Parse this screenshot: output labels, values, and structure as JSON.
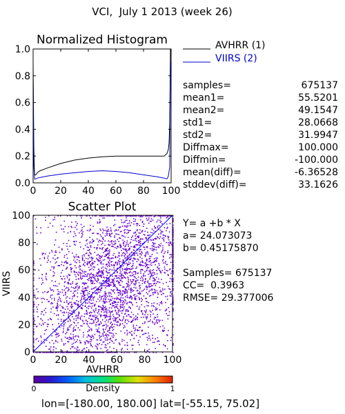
{
  "title": "VCI,  July 1 2013 (week 26)",
  "chart_data": [
    {
      "type": "line",
      "title": "Normalized Histogram",
      "xlim": [
        0,
        100
      ],
      "ylim": [
        0,
        1.0
      ],
      "xticks": [
        "0",
        "20",
        "40",
        "60",
        "80",
        "100"
      ],
      "yticks": [
        "0.0",
        "0.2",
        "0.4",
        "0.6",
        "0.8",
        "1.0"
      ],
      "series": [
        {
          "name": "AVHRR (1)",
          "color": "#000000",
          "x": [
            0,
            0.5,
            1,
            1.5,
            2,
            3,
            5,
            10,
            20,
            30,
            40,
            50,
            60,
            70,
            80,
            90,
            95,
            97,
            98,
            98.5,
            99,
            99.5,
            100
          ],
          "y": [
            0.9,
            0.28,
            0.06,
            0.06,
            0.06,
            0.075,
            0.09,
            0.11,
            0.145,
            0.17,
            0.185,
            0.195,
            0.2,
            0.2,
            0.2,
            0.2,
            0.2,
            0.22,
            0.25,
            0.3,
            0.45,
            1.0,
            1.0
          ]
        },
        {
          "name": "VIIRS (2)",
          "color": "#0000cc",
          "x": [
            0,
            0.5,
            1,
            2,
            3,
            5,
            10,
            20,
            30,
            40,
            50,
            60,
            70,
            80,
            90,
            95,
            97,
            98,
            99,
            99.5,
            100
          ],
          "y": [
            0.78,
            0.13,
            0.03,
            0.03,
            0.035,
            0.04,
            0.05,
            0.065,
            0.075,
            0.085,
            0.09,
            0.085,
            0.075,
            0.06,
            0.045,
            0.035,
            0.03,
            0.05,
            0.12,
            0.9,
            0.9
          ]
        }
      ]
    },
    {
      "type": "scatter",
      "title": "Scatter Plot",
      "xlabel": "AVHRR",
      "ylabel": "VIIRS",
      "xlim": [
        0,
        100
      ],
      "ylim": [
        0,
        100
      ],
      "xticks": [
        "0",
        "20",
        "40",
        "60",
        "80",
        "100"
      ],
      "yticks": [
        "0",
        "20",
        "40",
        "60",
        "80",
        "100"
      ],
      "regression": {
        "a": 24.073073,
        "b": 0.4517587
      },
      "diagonal_line": {
        "x": [
          0,
          100
        ],
        "y": [
          0,
          100
        ],
        "color": "#0000ff"
      },
      "point_color": "#6600cc",
      "samples": 675137
    }
  ],
  "legend": {
    "avhrr_label": "AVHRR (1)",
    "viirs_label": "VIIRS (2)"
  },
  "stats": [
    {
      "label": "samples=",
      "value": "675137"
    },
    {
      "label": "mean1=",
      "value": "55.5201"
    },
    {
      "label": "mean2=",
      "value": "49.1547"
    },
    {
      "label": "std1=",
      "value": "28.0668"
    },
    {
      "label": "std2=",
      "value": "31.9947"
    },
    {
      "label": "Diffmax=",
      "value": "100.000"
    },
    {
      "label": "Diffmin=",
      "value": "-100.000"
    },
    {
      "label": "mean(diff)=",
      "value": "-6.36528"
    },
    {
      "label": "stddev(diff)=",
      "value": "33.1626"
    }
  ],
  "regression_text": {
    "equation": "Y= a +b * X",
    "a": "a= 24.073073",
    "b": "b= 0.45175870",
    "samples": "Samples= 675137",
    "cc": "CC=  0.3963",
    "rmse": "RMSE= 29.377006"
  },
  "colorbar": {
    "label": "Density",
    "min_label": "0",
    "max_label": "1",
    "colors": [
      "#5a00a0",
      "#2a1ad0",
      "#0060ff",
      "#00c0e0",
      "#00e080",
      "#60e000",
      "#e0e000",
      "#ff8000",
      "#e02000"
    ]
  },
  "footer": "lon=[-180.00, 180.00] lat=[-55.15, 75.02]"
}
